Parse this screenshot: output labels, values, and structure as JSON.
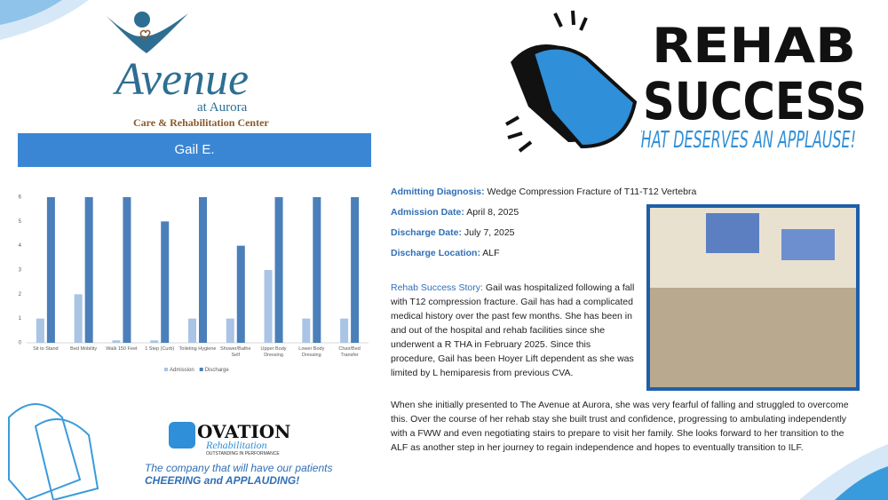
{
  "logo": {
    "name": "Avenue",
    "sub": "at Aurora",
    "tagline": "Care & Rehabilitation Center"
  },
  "banner": "Gail E.",
  "headline": {
    "line1": "REHAB",
    "line2": "SUCCESS",
    "line3": "THAT DESERVES AN APPLAUSE!"
  },
  "details": [
    {
      "label": "Admitting Diagnosis:",
      "value": "Wedge Compression Fracture of T11-T12 Vertebra"
    },
    {
      "label": "Admission Date:",
      "value": "April 8, 2025"
    },
    {
      "label": "Discharge Date:",
      "value": "July 7, 2025"
    },
    {
      "label": "Discharge Location:",
      "value": "ALF"
    }
  ],
  "story": {
    "label": "Rehab Success Story:",
    "text": "Gail was hospitalized following a fall with T12 compression fracture. Gail has had a complicated medical history over the past few months. She has been in and out of the hospital and rehab facilities since she underwent a R THA in February 2025. Since this procedure, Gail has been Hoyer Lift dependent as she was limited by L hemiparesis from previous CVA.",
    "paragraph2": "When she initially presented to The Avenue at Aurora, she was very fearful of falling and struggled to overcome this. Over the course of her rehab stay she built trust and confidence, progressing to ambulating independently with a FWW and even negotiating stairs to prepare to visit her family. She looks forward to her transition to the ALF as another step in her journey to regain independence and hopes to eventually transition to ILF."
  },
  "footer": {
    "brand": "OVATION",
    "brand_sub": "Rehabilitation",
    "motto": "OUTSTANDING IN PERFORMANCE",
    "tagline": "The company that will have our patients",
    "tagline_emphasis": "CHEERING and APPLAUDING!"
  },
  "chart_data": {
    "type": "bar",
    "categories": [
      "Sit to Stand",
      "Bed Mobility",
      "Walk 150 Feet",
      "1 Step (Curb)",
      "Toileting Hygiene",
      "Shower/Bathe Self",
      "Upper Body Dressing",
      "Lower Body Dressing",
      "Chair/Bed Transfer"
    ],
    "series": [
      {
        "name": "Admission",
        "color": "#a9c4e4",
        "values": [
          1,
          2,
          0.1,
          0.1,
          1,
          1,
          3,
          1,
          1
        ]
      },
      {
        "name": "Discharge",
        "color": "#4a7fba",
        "values": [
          6,
          6,
          6,
          5,
          6,
          4,
          6,
          6,
          6
        ]
      }
    ],
    "ylim": [
      0,
      6
    ],
    "yticks": [
      0,
      1,
      2,
      3,
      4,
      5,
      6
    ],
    "grid": false,
    "legend": "bottom"
  }
}
